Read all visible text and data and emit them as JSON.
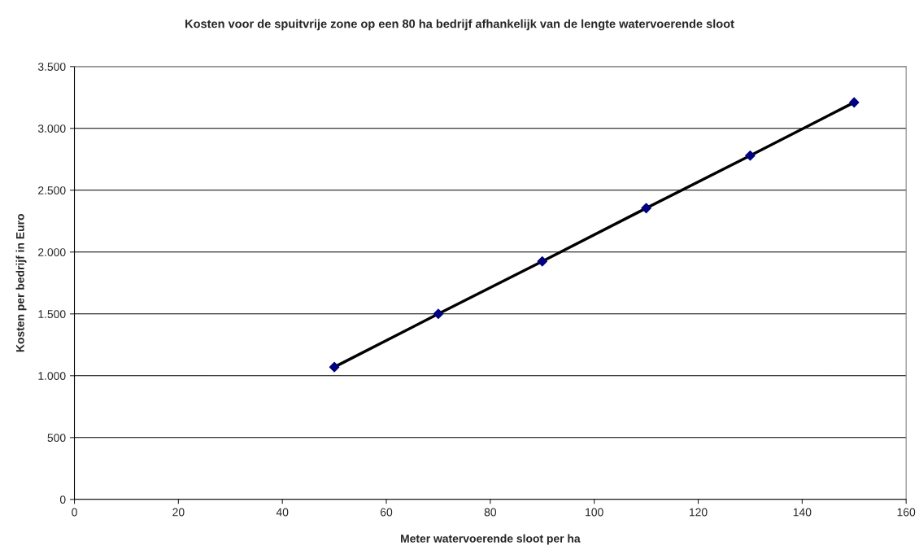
{
  "chart_data": {
    "type": "line",
    "title": "Kosten voor de spuitvrije zone op een 80 ha bedrijf afhankelijk van de lengte watervoerende sloot",
    "xlabel": "Meter watervoerende sloot per ha",
    "ylabel": "Kosten per bedrijf in Euro",
    "x": [
      50,
      70,
      90,
      110,
      130,
      150
    ],
    "series": [
      {
        "color": "#000000",
        "colors": [
          "#000080",
          "#000080",
          "#000080",
          "#000080",
          "#000080",
          "#000080"
        ],
        "values": [
          1070,
          1500,
          1925,
          2355,
          2780,
          3210
        ]
      }
    ],
    "marker": "diamond",
    "line_style": "solid",
    "grid": "y",
    "legend": false,
    "xlim": [
      0,
      160
    ],
    "xticks": [
      0,
      20,
      40,
      60,
      80,
      100,
      120,
      140,
      160
    ],
    "ylim": [
      0,
      3500
    ],
    "yticks": [
      0,
      500,
      {
        "value": 1000,
        "label": "1.000"
      },
      {
        "value": 1500,
        "label": "1.500"
      },
      {
        "value": 2000,
        "label": "2.000"
      },
      {
        "value": 2500,
        "label": "2.500"
      },
      {
        "value": 3000,
        "label": "3.000"
      },
      {
        "value": 3500,
        "label": "3.500"
      }
    ]
  }
}
